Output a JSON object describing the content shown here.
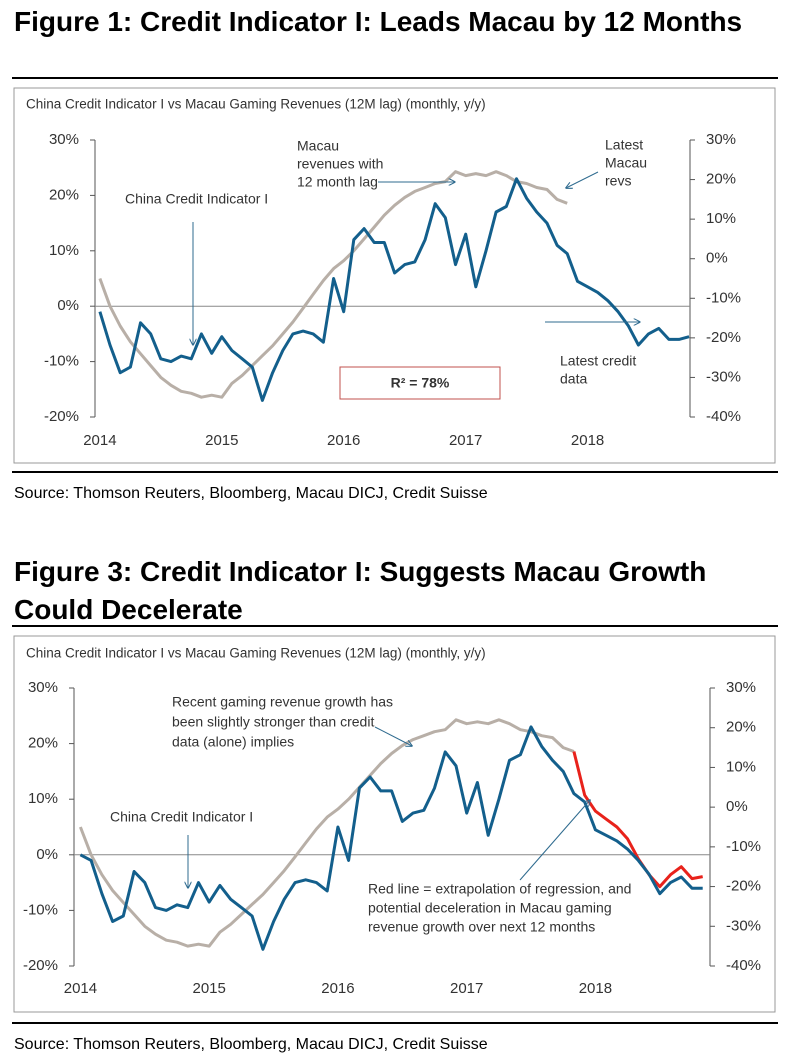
{
  "chart_data": [
    {
      "type": "line",
      "title": "Figure 1: Credit Indicator I: Leads Macau by 12 Months",
      "subtitle": "China Credit Indicator I vs Macau Gaming Revenues (12M lag) (monthly, y/y)",
      "source": "Source: Thomson Reuters, Bloomberg, Macau DICJ, Credit Suisse",
      "xlim": [
        2013.96,
        2018.84
      ],
      "xticks": [
        2014,
        2015,
        2016,
        2017,
        2018
      ],
      "ylim": [
        -20,
        30
      ],
      "yticks": [
        {
          "value": -20,
          "label": "-20%"
        },
        {
          "value": -10,
          "label": "-10%"
        },
        {
          "value": 0,
          "label": "0%"
        },
        {
          "value": 10,
          "label": "10%"
        },
        {
          "value": 20,
          "label": "20%"
        },
        {
          "value": 30,
          "label": "30%"
        }
      ],
      "y2lim": [
        -40,
        30
      ],
      "y2ticks": [
        {
          "value": -40,
          "label": "-40%"
        },
        {
          "value": -30,
          "label": "-30%"
        },
        {
          "value": -20,
          "label": "-20%"
        },
        {
          "value": -10,
          "label": "-10%"
        },
        {
          "value": 0,
          "label": "0%"
        },
        {
          "value": 10,
          "label": "10%"
        },
        {
          "value": 20,
          "label": "20%"
        },
        {
          "value": 30,
          "label": "30%"
        }
      ],
      "series": [
        {
          "color": "#b8afa7",
          "axis": "y2",
          "x": [
            2014.0,
            2014.083,
            2014.167,
            2014.25,
            2014.333,
            2014.417,
            2014.5,
            2014.583,
            2014.667,
            2014.75,
            2014.833,
            2014.917,
            2015.0,
            2015.083,
            2015.167,
            2015.25,
            2015.333,
            2015.417,
            2015.5,
            2015.583,
            2015.667,
            2015.75,
            2015.833,
            2015.917,
            2016.0,
            2016.083,
            2016.167,
            2016.25,
            2016.333,
            2016.417,
            2016.5,
            2016.583,
            2016.667,
            2016.75,
            2016.833,
            2016.917,
            2017.0,
            2017.083,
            2017.167,
            2017.25,
            2017.333,
            2017.417,
            2017.5,
            2017.583,
            2017.667,
            2017.75,
            2017.833
          ],
          "values": [
            -5,
            -12,
            -17,
            -21,
            -24,
            -27,
            -30,
            -32,
            -33.5,
            -34,
            -35,
            -34.5,
            -35,
            -31.5,
            -29.5,
            -27,
            -24.5,
            -22,
            -19,
            -16,
            -12.5,
            -9,
            -5.5,
            -2.5,
            -0.5,
            2,
            5,
            8,
            11,
            13.5,
            15.5,
            17,
            18,
            19,
            19.5,
            22,
            21,
            21.5,
            21,
            22,
            21,
            19.5,
            19,
            18,
            17.5,
            15,
            14
          ]
        },
        {
          "color": "#135f8c",
          "x": [
            2014.0,
            2014.083,
            2014.167,
            2014.25,
            2014.333,
            2014.417,
            2014.5,
            2014.583,
            2014.667,
            2014.75,
            2014.833,
            2014.917,
            2015.0,
            2015.083,
            2015.167,
            2015.25,
            2015.333,
            2015.417,
            2015.5,
            2015.583,
            2015.667,
            2015.75,
            2015.833,
            2015.917,
            2016.0,
            2016.083,
            2016.167,
            2016.25,
            2016.333,
            2016.417,
            2016.5,
            2016.583,
            2016.667,
            2016.75,
            2016.833,
            2016.917,
            2017.0,
            2017.083,
            2017.167,
            2017.25,
            2017.333,
            2017.417,
            2017.5,
            2017.583,
            2017.667,
            2017.75,
            2017.833,
            2017.917,
            2018.0,
            2018.083,
            2018.167,
            2018.25,
            2018.333,
            2018.417,
            2018.5,
            2018.583,
            2018.667,
            2018.75,
            2018.833
          ],
          "values": [
            -1,
            -7,
            -12,
            -11,
            -3,
            -5,
            -9.5,
            -10,
            -9,
            -9.5,
            -5,
            -8.5,
            -5.5,
            -8,
            -9.5,
            -11,
            -17,
            -12,
            -8,
            -5,
            -4.5,
            -5,
            -6.5,
            5,
            -1,
            12,
            14,
            11.5,
            11.5,
            6,
            7.5,
            8,
            12,
            18.5,
            16,
            7.5,
            13,
            3.5,
            10,
            17,
            18,
            23,
            19.5,
            17,
            15,
            11,
            9.5,
            4.5,
            3.5,
            2.5,
            1,
            -1,
            -3.5,
            -7,
            -5,
            -4,
            -6,
            -6,
            -5.5
          ]
        }
      ],
      "annotations": [
        {
          "lines": [
            "Macau",
            "revenues with",
            "12 month lag"
          ]
        },
        {
          "lines": [
            "China Credit Indicator I"
          ]
        },
        {
          "lines": [
            "Latest",
            "Macau",
            "revs"
          ]
        },
        {
          "lines": [
            "Latest credit",
            "data"
          ]
        },
        {
          "lines": [
            "R² = 78%"
          ]
        }
      ]
    },
    {
      "type": "line",
      "title": "Figure 3: Credit Indicator I: Suggests Macau Growth Could Decelerate",
      "subtitle": "China Credit Indicator I vs Macau Gaming Revenues (12M lag) (monthly, y/y)",
      "source": "Source: Thomson Reuters, Bloomberg, Macau DICJ, Credit Suisse",
      "xlim": [
        2013.95,
        2018.89
      ],
      "xticks": [
        2014,
        2015,
        2016,
        2017,
        2018
      ],
      "ylim": [
        -20,
        30
      ],
      "yticks": [
        {
          "value": -20,
          "label": "-20%"
        },
        {
          "value": -10,
          "label": "-10%"
        },
        {
          "value": 0,
          "label": "0%"
        },
        {
          "value": 10,
          "label": "10%"
        },
        {
          "value": 20,
          "label": "20%"
        },
        {
          "value": 30,
          "label": "30%"
        }
      ],
      "y2lim": [
        -40,
        30
      ],
      "y2ticks": [
        {
          "value": -40,
          "label": "-40%"
        },
        {
          "value": -30,
          "label": "-30%"
        },
        {
          "value": -20,
          "label": "-20%"
        },
        {
          "value": -10,
          "label": "-10%"
        },
        {
          "value": 0,
          "label": "0%"
        },
        {
          "value": 10,
          "label": "10%"
        },
        {
          "value": 20,
          "label": "20%"
        },
        {
          "value": 30,
          "label": "30%"
        }
      ],
      "series": [
        {
          "color": "#b8afa7",
          "axis": "y2",
          "x": [
            2014.0,
            2014.083,
            2014.167,
            2014.25,
            2014.333,
            2014.417,
            2014.5,
            2014.583,
            2014.667,
            2014.75,
            2014.833,
            2014.917,
            2015.0,
            2015.083,
            2015.167,
            2015.25,
            2015.333,
            2015.417,
            2015.5,
            2015.583,
            2015.667,
            2015.75,
            2015.833,
            2015.917,
            2016.0,
            2016.083,
            2016.167,
            2016.25,
            2016.333,
            2016.417,
            2016.5,
            2016.583,
            2016.667,
            2016.75,
            2016.833,
            2016.917,
            2017.0,
            2017.083,
            2017.167,
            2017.25,
            2017.333,
            2017.417,
            2017.5,
            2017.583,
            2017.667,
            2017.75,
            2017.833
          ],
          "values": [
            -5,
            -12,
            -17,
            -21,
            -24,
            -27,
            -30,
            -32,
            -33.5,
            -34,
            -35,
            -34.5,
            -35,
            -31.5,
            -29.5,
            -27,
            -24.5,
            -22,
            -19,
            -16,
            -12.5,
            -9,
            -5.5,
            -2.5,
            -0.5,
            2,
            5,
            8,
            11,
            13.5,
            15.5,
            17,
            18,
            19,
            19.5,
            22,
            21,
            21.5,
            21,
            22,
            21,
            19.5,
            19,
            18,
            17.5,
            15,
            14
          ]
        },
        {
          "color": "#e8221b",
          "axis": "y2",
          "x": [
            2017.833,
            2017.917,
            2018.0,
            2018.083,
            2018.167,
            2018.25,
            2018.333,
            2018.417,
            2018.5,
            2018.583,
            2018.667,
            2018.75,
            2018.833
          ],
          "values": [
            14,
            3,
            -1,
            -3,
            -5,
            -8,
            -13,
            -17,
            -20,
            -17,
            -15,
            -18,
            -17.5
          ]
        },
        {
          "color": "#135f8c",
          "x": [
            2014.0,
            2014.083,
            2014.167,
            2014.25,
            2014.333,
            2014.417,
            2014.5,
            2014.583,
            2014.667,
            2014.75,
            2014.833,
            2014.917,
            2015.0,
            2015.083,
            2015.167,
            2015.25,
            2015.333,
            2015.417,
            2015.5,
            2015.583,
            2015.667,
            2015.75,
            2015.833,
            2015.917,
            2016.0,
            2016.083,
            2016.167,
            2016.25,
            2016.333,
            2016.417,
            2016.5,
            2016.583,
            2016.667,
            2016.75,
            2016.833,
            2016.917,
            2017.0,
            2017.083,
            2017.167,
            2017.25,
            2017.333,
            2017.417,
            2017.5,
            2017.583,
            2017.667,
            2017.75,
            2017.833,
            2017.917,
            2018.0,
            2018.083,
            2018.167,
            2018.25,
            2018.333,
            2018.417,
            2018.5,
            2018.583,
            2018.667,
            2018.75,
            2018.833
          ],
          "values": [
            0,
            -1,
            -7,
            -12,
            -11,
            -3,
            -5,
            -9.5,
            -10,
            -9,
            -9.5,
            -5,
            -8.5,
            -5.5,
            -8,
            -9.5,
            -11,
            -17,
            -12,
            -8,
            -5,
            -4.5,
            -5,
            -6.5,
            5,
            -1,
            12,
            14,
            11.5,
            11.5,
            6,
            7.5,
            8,
            12,
            18.5,
            16,
            7.5,
            13,
            3.5,
            10,
            17,
            18,
            23,
            19.5,
            17,
            15,
            11,
            9.5,
            4.5,
            3.5,
            2.5,
            1,
            -1,
            -3.5,
            -7,
            -5,
            -4,
            -6,
            -6
          ]
        }
      ],
      "annotations": [
        {
          "lines": [
            "Recent gaming revenue growth has",
            "been slightly stronger than credit",
            "data (alone) implies"
          ]
        },
        {
          "lines": [
            "China Credit Indicator I"
          ]
        },
        {
          "lines": [
            "Red line = extrapolation of regression, and",
            "potential deceleration in Macau gaming",
            "revenue growth over next 12 months"
          ]
        }
      ]
    }
  ]
}
